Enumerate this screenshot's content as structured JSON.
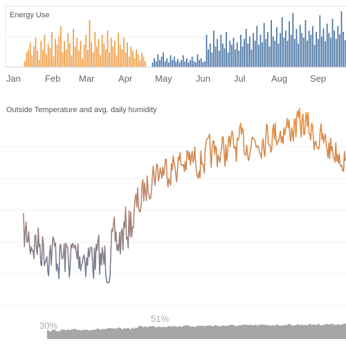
{
  "chart_data": [
    {
      "type": "bar",
      "title": "Energy Use",
      "x_ticks": [
        "Jan",
        "Feb",
        "Mar",
        "Apr",
        "May",
        "Jun",
        "Jul",
        "Aug",
        "Sep"
      ],
      "series": [
        {
          "color": "#f0a04b",
          "values": [
            10,
            25,
            30,
            42,
            20,
            35,
            50,
            28,
            12,
            45,
            30,
            55,
            22,
            40,
            33,
            60,
            18,
            48,
            38,
            52,
            70,
            25,
            44,
            30,
            58,
            40,
            20,
            65,
            35,
            50,
            28,
            45,
            15,
            38,
            55,
            30,
            80,
            42,
            25,
            60,
            35,
            48,
            20,
            55,
            40,
            30,
            62,
            25,
            50,
            35,
            45,
            20,
            58,
            38,
            30,
            50,
            25,
            42,
            18,
            35,
            28,
            15,
            30,
            22,
            12,
            25,
            18,
            10
          ]
        },
        {
          "color": "#4e79a7",
          "values": [
            8,
            15,
            10,
            22,
            12,
            18,
            25,
            10,
            15,
            8,
            20,
            12,
            18,
            10,
            14,
            8,
            12,
            20,
            10,
            15,
            8,
            12,
            18,
            10,
            8,
            22,
            12,
            15,
            8,
            10,
            55,
            30,
            40,
            25,
            62,
            35,
            48,
            28,
            55,
            40,
            32,
            60,
            25,
            45,
            38,
            50,
            30,
            42,
            28,
            55,
            35,
            48,
            65,
            40,
            52,
            30,
            58,
            45,
            70,
            38,
            55,
            42,
            75,
            48,
            60,
            35,
            80,
            52,
            45,
            68,
            40,
            58,
            85,
            50,
            62,
            45,
            78,
            55,
            92,
            48,
            65,
            40,
            72,
            58,
            50,
            80,
            45,
            62,
            55,
            70,
            38,
            60,
            48,
            88,
            52,
            66,
            44,
            74,
            58,
            50,
            82,
            62,
            48,
            70,
            56,
            95,
            60,
            46,
            68,
            52,
            76,
            58,
            44,
            64,
            50,
            72,
            40,
            58,
            46,
            62,
            38,
            50,
            34,
            56,
            42,
            48,
            30,
            44,
            38,
            52,
            34,
            46,
            28,
            40,
            36,
            50,
            42,
            30,
            46,
            38,
            55,
            44,
            36,
            60,
            48,
            40,
            65,
            52,
            45
          ]
        }
      ]
    },
    {
      "type": "line",
      "title": "Outside Temperature and avg. daily humidity",
      "color_scale": [
        "#4e79a7",
        "#f28e2b"
      ],
      "humidity": {
        "type": "area",
        "color": "#a6a6a6",
        "labels": [
          "30%",
          "51%"
        ]
      }
    }
  ]
}
